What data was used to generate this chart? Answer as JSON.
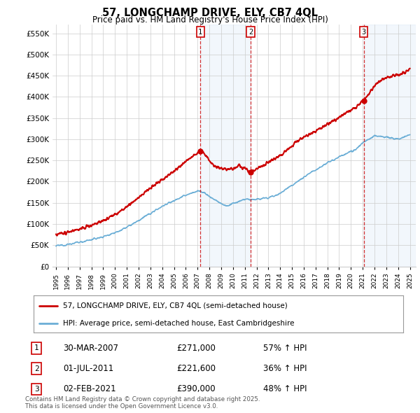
{
  "title": "57, LONGCHAMP DRIVE, ELY, CB7 4QL",
  "subtitle": "Price paid vs. HM Land Registry's House Price Index (HPI)",
  "ylim": [
    0,
    570000
  ],
  "yticks": [
    0,
    50000,
    100000,
    150000,
    200000,
    250000,
    300000,
    350000,
    400000,
    450000,
    500000,
    550000
  ],
  "ytick_labels": [
    "£0",
    "£50K",
    "£100K",
    "£150K",
    "£200K",
    "£250K",
    "£300K",
    "£350K",
    "£400K",
    "£450K",
    "£500K",
    "£550K"
  ],
  "x_start_year": 1995,
  "x_end_year": 2025,
  "hpi_color": "#6baed6",
  "price_color": "#cc0000",
  "vline_color": "#cc0000",
  "shade_color": "#ddeeff",
  "sale1_date": 2007.24,
  "sale1_label": "1",
  "sale1_price": 271000,
  "sale2_date": 2011.5,
  "sale2_label": "2",
  "sale2_price": 221600,
  "sale3_date": 2021.08,
  "sale3_label": "3",
  "sale3_price": 390000,
  "legend_line1": "57, LONGCHAMP DRIVE, ELY, CB7 4QL (semi-detached house)",
  "legend_line2": "HPI: Average price, semi-detached house, East Cambridgeshire",
  "footnote": "Contains HM Land Registry data © Crown copyright and database right 2025.\nThis data is licensed under the Open Government Licence v3.0.",
  "background_color": "#ffffff",
  "grid_color": "#cccccc"
}
